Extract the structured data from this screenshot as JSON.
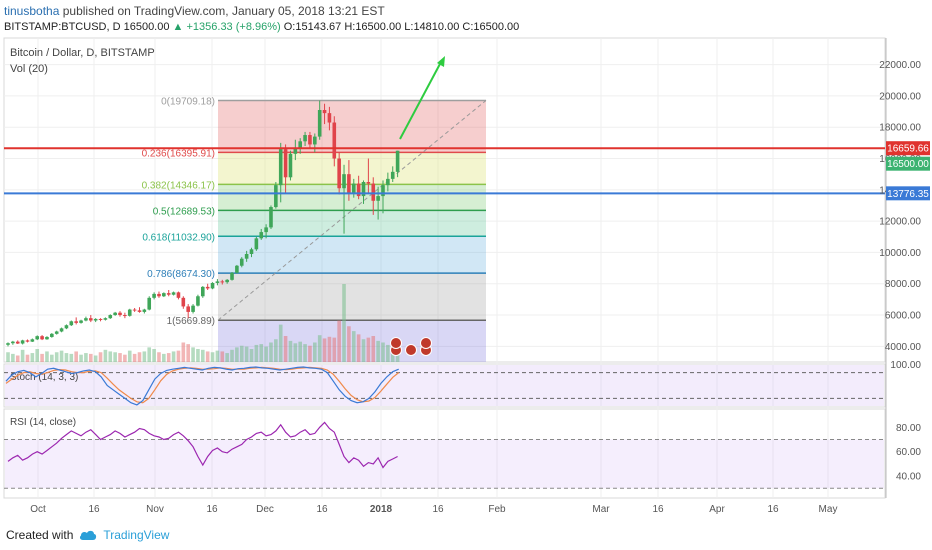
{
  "header": {
    "author": "tinusbotha",
    "published": "published on TradingView.com, January 05, 2018 13:21 EST",
    "ohlc_prefix": "BITSTAMP:BTCUSD, D",
    "last": "16500.00",
    "change": "▲ +1356.33 (+8.96%)",
    "open": "O:15143.67",
    "high": "H:16500.00",
    "low": "L:14810.00",
    "close": "C:16500.00"
  },
  "footer": {
    "created_with": "Created with",
    "brand": "TradingView"
  },
  "chart_data": {
    "type": "candlestick",
    "title": "Bitcoin / Dollar, D, BITSTAMP",
    "volume_label": "Vol (20)",
    "y_ticks": [
      "22000.00",
      "20000.00",
      "18000.00",
      "16000.00",
      "14000.00",
      "12000.00",
      "10000.00",
      "8000.00",
      "6000.00",
      "4000.00"
    ],
    "ylim": [
      3000,
      23700
    ],
    "x_ticks": [
      "Oct",
      "16",
      "Nov",
      "16",
      "Dec",
      "16",
      "2018",
      "16",
      "Feb",
      "Mar",
      "16",
      "Apr",
      "16",
      "May"
    ],
    "price_labels": [
      {
        "value": 16659.66,
        "text": "16659.66",
        "color": "#e0332e"
      },
      {
        "value": 16500.0,
        "text": "16500.00",
        "color": "#3cb371"
      },
      {
        "value": 13776.35,
        "text": "13776.35",
        "color": "#3a7ad6"
      }
    ],
    "horizontal_lines": [
      {
        "value": 16659.66,
        "color": "#e0332e"
      },
      {
        "value": 13776.35,
        "color": "#3a7ad6"
      }
    ],
    "fibonacci": [
      {
        "label": "0(19709.18)",
        "value": 19709.18,
        "color": "#9e9e9e"
      },
      {
        "label": "0.236(16395.91)",
        "value": 16395.91,
        "color": "#e04b4b"
      },
      {
        "label": "0.382(14346.17)",
        "value": 14346.17,
        "color": "#8bc34a"
      },
      {
        "label": "0.5(12689.53)",
        "value": 12689.53,
        "color": "#2e9d4e"
      },
      {
        "label": "0.618(11032.90)",
        "value": 11032.9,
        "color": "#1aa39a"
      },
      {
        "label": "0.786(8674.30)",
        "value": 8674.3,
        "color": "#2e7fb8"
      },
      {
        "label": "1(5669.89)",
        "value": 5669.89,
        "color": "#666666"
      }
    ],
    "candles": [
      [
        4100,
        4250,
        4000,
        4200
      ],
      [
        4200,
        4350,
        4100,
        4300
      ],
      [
        4300,
        4380,
        4150,
        4180
      ],
      [
        4180,
        4420,
        4120,
        4380
      ],
      [
        4380,
        4440,
        4250,
        4300
      ],
      [
        4300,
        4500,
        4280,
        4450
      ],
      [
        4450,
        4700,
        4400,
        4650
      ],
      [
        4650,
        4720,
        4400,
        4450
      ],
      [
        4450,
        4650,
        4420,
        4600
      ],
      [
        4600,
        4850,
        4550,
        4800
      ],
      [
        4800,
        5000,
        4750,
        4950
      ],
      [
        4950,
        5200,
        4900,
        5150
      ],
      [
        5150,
        5400,
        5100,
        5350
      ],
      [
        5350,
        5650,
        5300,
        5600
      ],
      [
        5600,
        5850,
        5400,
        5500
      ],
      [
        5500,
        5700,
        5450,
        5650
      ],
      [
        5650,
        5900,
        5600,
        5800
      ],
      [
        5800,
        6000,
        5550,
        5650
      ],
      [
        5650,
        5800,
        5550,
        5750
      ],
      [
        5750,
        5800,
        5600,
        5700
      ],
      [
        5700,
        5850,
        5650,
        5800
      ],
      [
        5800,
        6050,
        5750,
        6000
      ],
      [
        6000,
        6200,
        5950,
        6150
      ],
      [
        6150,
        6250,
        5900,
        6000
      ],
      [
        6000,
        6150,
        5800,
        5950
      ],
      [
        5950,
        6400,
        5900,
        6350
      ],
      [
        6350,
        6450,
        6200,
        6300
      ],
      [
        6300,
        6500,
        6150,
        6200
      ],
      [
        6200,
        6400,
        6100,
        6350
      ],
      [
        6350,
        7200,
        6300,
        7100
      ],
      [
        7100,
        7450,
        7000,
        7350
      ],
      [
        7350,
        7500,
        7100,
        7200
      ],
      [
        7200,
        7450,
        7150,
        7400
      ],
      [
        7400,
        7600,
        7200,
        7300
      ],
      [
        7300,
        7500,
        7250,
        7450
      ],
      [
        7450,
        7500,
        7000,
        7100
      ],
      [
        7100,
        7200,
        6400,
        6550
      ],
      [
        6550,
        6700,
        5800,
        6200
      ],
      [
        6200,
        6700,
        6100,
        6600
      ],
      [
        6600,
        7300,
        6550,
        7200
      ],
      [
        7200,
        7850,
        7100,
        7800
      ],
      [
        7800,
        8000,
        7600,
        7700
      ],
      [
        7700,
        8100,
        7650,
        8050
      ],
      [
        8050,
        8300,
        7900,
        8150
      ],
      [
        8150,
        8250,
        7950,
        8100
      ],
      [
        8100,
        8300,
        8000,
        8250
      ],
      [
        8250,
        8750,
        8200,
        8700
      ],
      [
        8700,
        9200,
        8650,
        9150
      ],
      [
        9150,
        9700,
        9050,
        9600
      ],
      [
        9600,
        10100,
        9400,
        9900
      ],
      [
        9900,
        10300,
        9700,
        10200
      ],
      [
        10200,
        11000,
        10100,
        10900
      ],
      [
        10900,
        11500,
        10800,
        11300
      ],
      [
        11300,
        11800,
        10900,
        11600
      ],
      [
        11600,
        13000,
        11500,
        12900
      ],
      [
        12900,
        14500,
        12800,
        14300
      ],
      [
        14300,
        17000,
        13200,
        16600
      ],
      [
        16600,
        16900,
        13800,
        14800
      ],
      [
        14800,
        16500,
        14600,
        16300
      ],
      [
        16300,
        17200,
        15900,
        16700
      ],
      [
        16700,
        17300,
        16300,
        17100
      ],
      [
        17100,
        17700,
        16800,
        17500
      ],
      [
        17500,
        17700,
        16700,
        16900
      ],
      [
        16900,
        17600,
        16400,
        17400
      ],
      [
        17400,
        19700,
        17200,
        19100
      ],
      [
        19100,
        19500,
        18200,
        18900
      ],
      [
        18900,
        19300,
        17800,
        18300
      ],
      [
        18300,
        18700,
        15500,
        16000
      ],
      [
        16000,
        16400,
        13700,
        14100
      ],
      [
        14100,
        15600,
        11200,
        15000
      ],
      [
        15000,
        15900,
        13300,
        13800
      ],
      [
        13800,
        14700,
        13500,
        14400
      ],
      [
        14400,
        14900,
        13400,
        13600
      ],
      [
        13600,
        14600,
        13100,
        14500
      ],
      [
        14500,
        16000,
        13800,
        14400
      ],
      [
        14400,
        14800,
        12400,
        13300
      ],
      [
        13300,
        14200,
        12100,
        13600
      ],
      [
        13600,
        14600,
        12500,
        14300
      ],
      [
        14300,
        15100,
        13900,
        14700
      ],
      [
        14700,
        15500,
        14500,
        15150
      ],
      [
        15150,
        16500,
        14810,
        16500
      ]
    ],
    "volumes": [
      1.2,
      1.0,
      0.8,
      1.5,
      0.9,
      1.1,
      1.6,
      1.0,
      1.3,
      0.9,
      1.2,
      1.4,
      1.1,
      1.0,
      1.3,
      0.9,
      1.1,
      1.0,
      0.8,
      1.2,
      1.5,
      1.3,
      1.2,
      1.1,
      0.9,
      1.4,
      1.0,
      1.2,
      1.3,
      1.8,
      1.6,
      1.2,
      1.0,
      1.1,
      1.3,
      1.4,
      2.4,
      2.2,
      1.8,
      1.6,
      1.5,
      1.3,
      1.2,
      1.4,
      1.3,
      1.1,
      1.5,
      1.8,
      2.0,
      1.9,
      1.6,
      2.1,
      2.2,
      1.9,
      2.4,
      2.8,
      4.6,
      3.2,
      2.6,
      2.3,
      2.5,
      2.2,
      2.0,
      2.4,
      3.3,
      2.9,
      3.1,
      3.0,
      5.1,
      9.6,
      4.4,
      3.8,
      3.4,
      2.8,
      3.0,
      3.2,
      2.6,
      2.4,
      2.1,
      1.9,
      2.0
    ],
    "oscillators": [
      {
        "label": "Stoch (14, 3, 3)",
        "y_ticks": [
          "100.00"
        ],
        "bands": [
          80,
          20
        ]
      },
      {
        "label": "RSI (14, close)",
        "y_ticks": [
          "80.00",
          "60.00",
          "40.00"
        ],
        "bands": [
          70,
          30
        ]
      }
    ],
    "stoch_k": [
      60,
      75,
      82,
      85,
      80,
      70,
      78,
      88,
      90,
      86,
      82,
      78,
      80,
      84,
      86,
      82,
      70,
      50,
      40,
      30,
      20,
      10,
      5,
      15,
      40,
      65,
      78,
      85,
      88,
      90,
      92,
      90,
      88,
      86,
      90,
      92,
      91,
      88,
      86,
      89,
      90,
      92,
      93,
      91,
      90,
      88,
      86,
      88,
      90,
      92,
      93,
      91,
      90,
      88,
      80,
      60,
      40,
      25,
      15,
      10,
      12,
      20,
      35,
      55,
      70,
      82,
      88
    ],
    "stoch_d": [
      55,
      65,
      74,
      80,
      82,
      78,
      76,
      80,
      85,
      87,
      86,
      82,
      80,
      80,
      83,
      84,
      80,
      67,
      53,
      40,
      30,
      20,
      12,
      10,
      20,
      40,
      61,
      76,
      84,
      88,
      90,
      91,
      90,
      88,
      88,
      89,
      91,
      90,
      88,
      88,
      88,
      90,
      91,
      92,
      91,
      90,
      88,
      87,
      88,
      90,
      91,
      92,
      91,
      90,
      86,
      76,
      60,
      42,
      27,
      17,
      12,
      14,
      22,
      37,
      53,
      69,
      80
    ],
    "rsi": [
      52,
      55,
      57,
      53,
      55,
      58,
      60,
      58,
      61,
      64,
      67,
      71,
      74,
      77,
      75,
      73,
      76,
      78,
      74,
      70,
      72,
      74,
      77,
      75,
      72,
      74,
      76,
      79,
      78,
      75,
      73,
      72,
      70,
      71,
      74,
      76,
      73,
      69,
      64,
      56,
      49,
      56,
      61,
      63,
      60,
      59,
      62,
      64,
      66,
      70,
      72,
      75,
      76,
      73,
      74,
      77,
      82,
      76,
      72,
      73,
      76,
      78,
      74,
      75,
      80,
      84,
      79,
      76,
      66,
      56,
      51,
      55,
      53,
      48,
      51,
      50,
      55,
      47,
      52,
      54,
      56
    ]
  }
}
